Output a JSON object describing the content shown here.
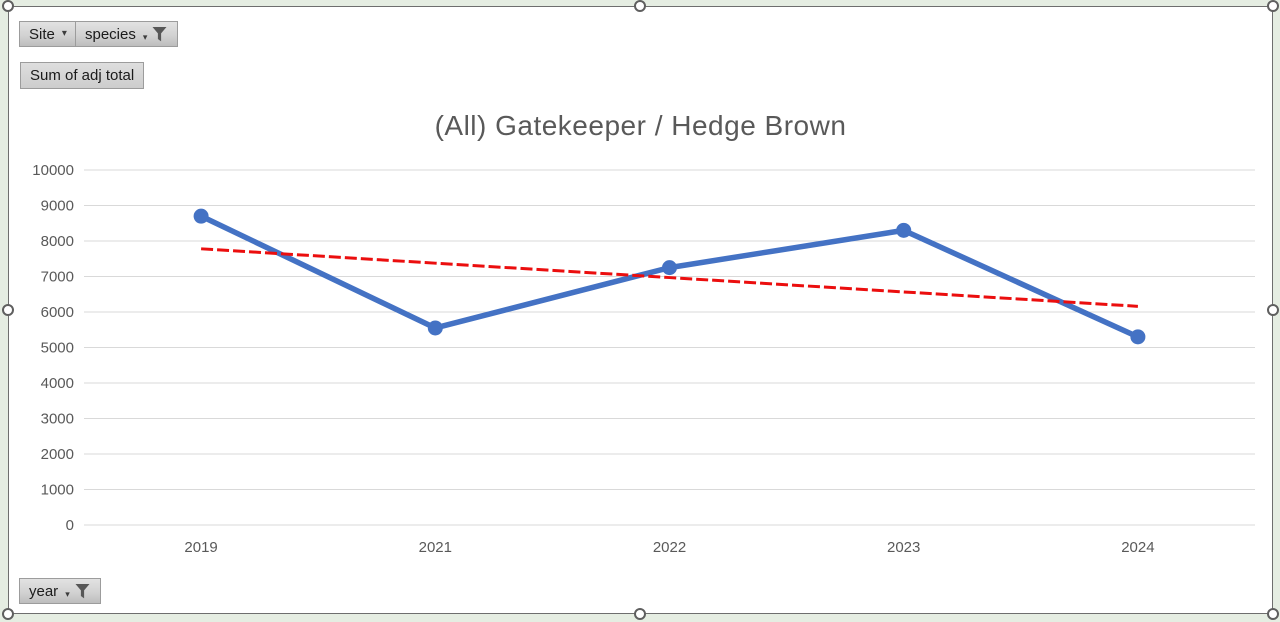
{
  "icons": {
    "chevron_down": "▾"
  },
  "pivot_fields": {
    "site": {
      "label": "Site",
      "icon": "chevron-down-icon"
    },
    "species": {
      "label": "species",
      "icon": "filter-icon"
    },
    "value": {
      "label": "Sum of adj total"
    },
    "year": {
      "label": "year",
      "icon": "filter-icon"
    }
  },
  "chart_data": {
    "type": "line",
    "title": "(All) Gatekeeper / Hedge Brown",
    "categories": [
      "2019",
      "2021",
      "2022",
      "2023",
      "2024"
    ],
    "series": [
      {
        "name": "Sum of adj total",
        "type": "line",
        "color": "#4472c4",
        "marker": "circle",
        "values": [
          8700,
          5550,
          7250,
          8300,
          5300
        ]
      },
      {
        "name": "Linear trendline",
        "type": "trendline",
        "color": "#eb0e0e",
        "dashed": true,
        "values": [
          7780,
          7375,
          6970,
          6565,
          6160
        ]
      }
    ],
    "xlabel": "",
    "ylabel": "",
    "ylim": [
      0,
      10000
    ],
    "ytick_step": 1000,
    "yticks": [
      0,
      1000,
      2000,
      3000,
      4000,
      5000,
      6000,
      7000,
      8000,
      9000,
      10000
    ],
    "grid": true,
    "legend": false,
    "axis_label_color": "#595959",
    "gridline_color": "#d9d9d9",
    "title_color": "#595959"
  }
}
